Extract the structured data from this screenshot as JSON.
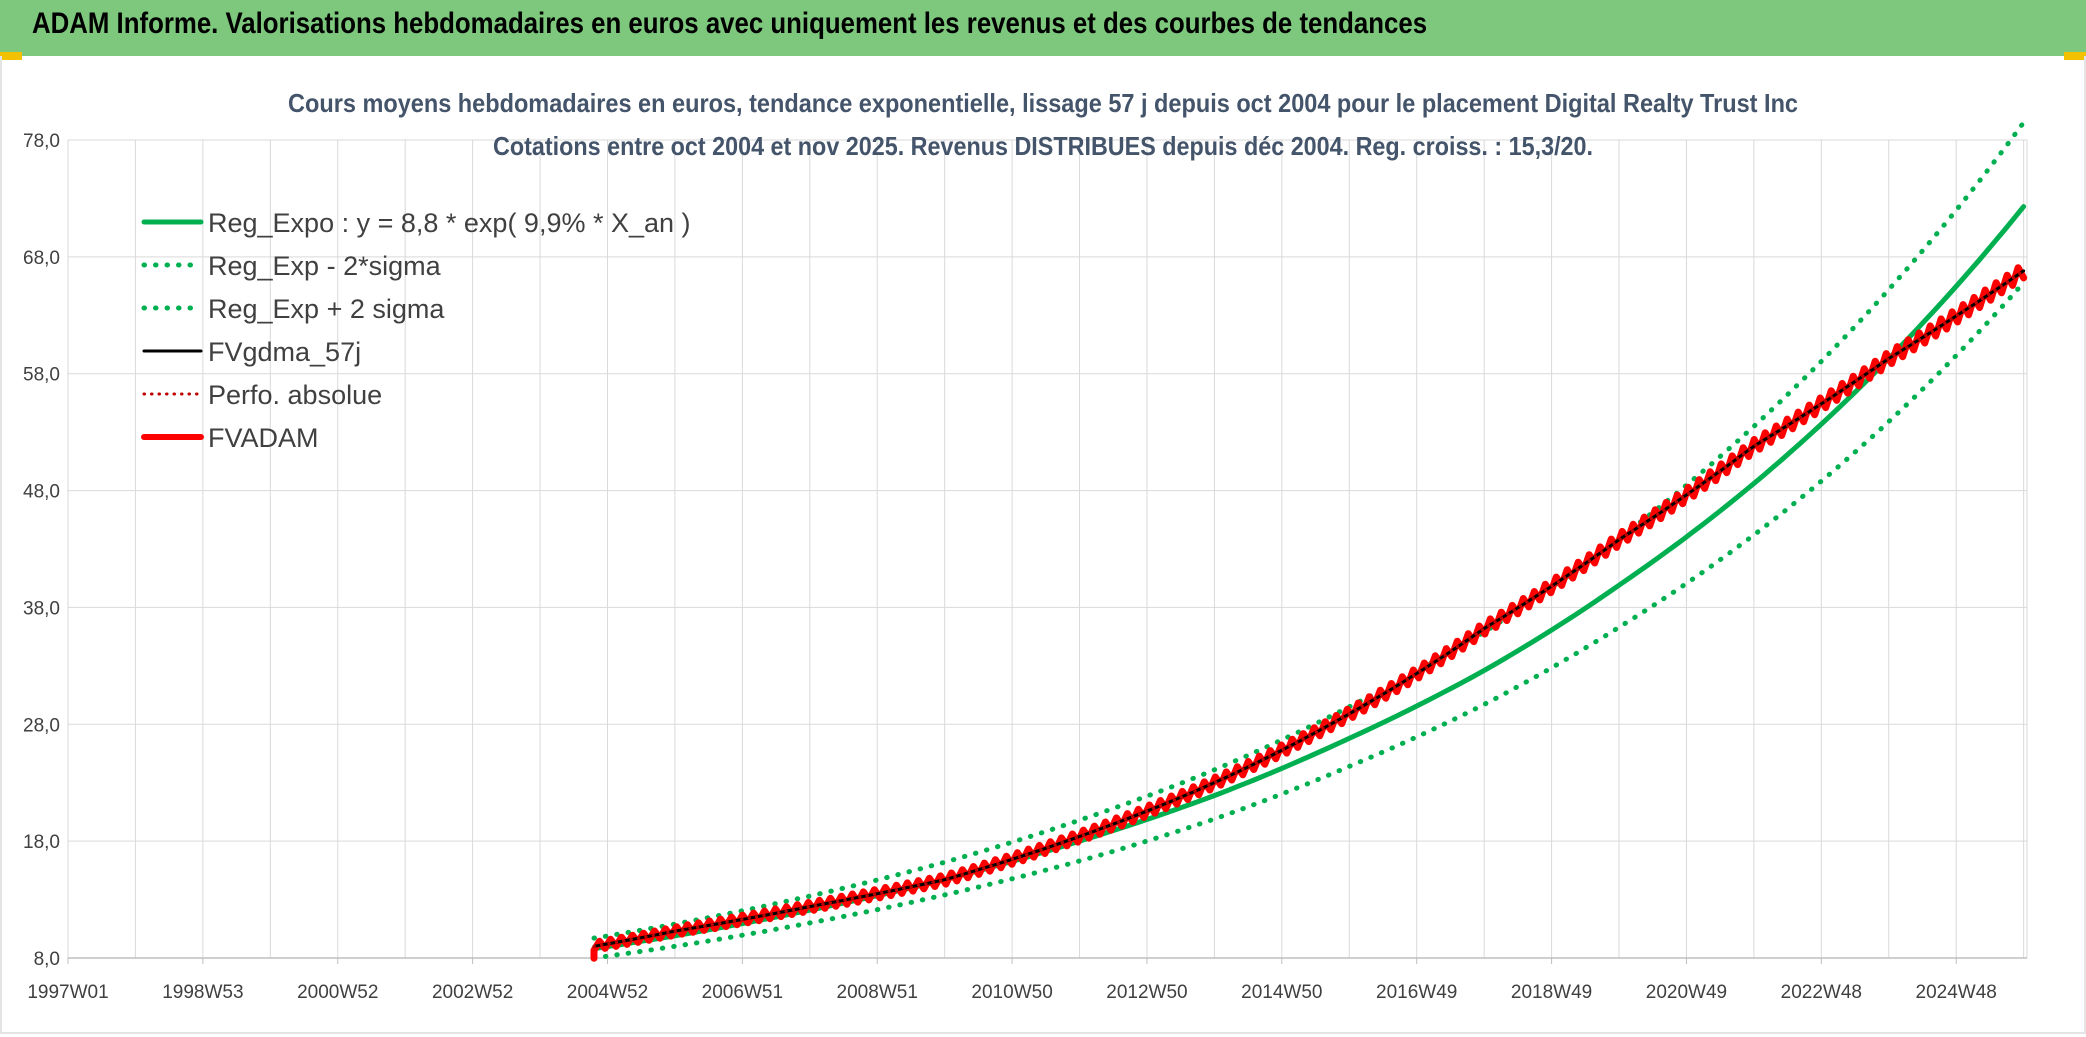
{
  "header": {
    "title": "ADAM Informe. Valorisations hebdomadaires en euros avec uniquement les revenus et des courbes de tendances"
  },
  "colors": {
    "header_bg": "#7dc87d",
    "reg_green": "#00b050",
    "fvadam_red": "#ff0000",
    "perfo_red": "#c00000",
    "fvgdma_black": "#000000",
    "grid": "#d9d9d9"
  },
  "chart_data": {
    "type": "line",
    "title": "Cours moyens hebdomadaires en euros, tendance exponentielle, lissage 57 j depuis oct 2004 pour le placement Digital Realty Trust Inc",
    "subtitle": "Cotations entre oct 2004 et nov 2025. Revenus DISTRIBUES depuis déc 2004. Reg. croiss. : 15,3/20.",
    "x_ticks": [
      "1997W01",
      "1998W53",
      "2000W52",
      "2002W52",
      "2004W52",
      "2006W51",
      "2008W51",
      "2010W50",
      "2012W50",
      "2014W50",
      "2016W49",
      "2018W49",
      "2020W49",
      "2022W48",
      "2024W48"
    ],
    "x_tick_years": [
      1997.0,
      1999.0,
      2001.0,
      2003.0,
      2005.0,
      2007.0,
      2009.0,
      2011.0,
      2013.0,
      2015.0,
      2017.0,
      2019.0,
      2021.0,
      2023.0,
      2025.0
    ],
    "x_range": [
      1997.0,
      2026.05
    ],
    "y_ticks": [
      "8,0",
      "18,0",
      "28,0",
      "38,0",
      "48,0",
      "58,0",
      "68,0",
      "78,0"
    ],
    "ylim": [
      8,
      78
    ],
    "grid": true,
    "legend_position": "top-left",
    "series": [
      {
        "name": "Reg_Expo : y = 8,8 * exp( 9,9% *  X_an )",
        "color": "#00b050",
        "style": "solid-thick",
        "x": [
          2004.8,
          2006,
          2008,
          2010,
          2012,
          2014,
          2016,
          2018,
          2020,
          2022,
          2024,
          2026
        ],
        "values": [
          8.8,
          9.9,
          12.1,
          14.7,
          18.0,
          21.9,
          26.8,
          32.6,
          39.9,
          48.6,
          59.3,
          72.3
        ]
      },
      {
        "name": "Reg_Exp - 2*sigma",
        "color": "#00b050",
        "style": "dotted",
        "x": [
          2004.8,
          2006,
          2008,
          2010,
          2012,
          2014,
          2016,
          2018,
          2020,
          2022,
          2024,
          2026
        ],
        "values": [
          8.0,
          9.0,
          11.0,
          13.4,
          16.3,
          19.9,
          24.4,
          29.7,
          36.3,
          44.2,
          53.9,
          65.8
        ]
      },
      {
        "name": "Reg_Exp + 2 sigma",
        "color": "#00b050",
        "style": "dotted",
        "x": [
          2004.8,
          2006,
          2008,
          2010,
          2012,
          2014,
          2016,
          2018,
          2020,
          2022,
          2024,
          2026
        ],
        "values": [
          9.7,
          10.9,
          13.3,
          16.2,
          19.8,
          24.1,
          29.5,
          35.9,
          43.9,
          53.5,
          65.2,
          79.5
        ]
      },
      {
        "name": "FVgdma_57j",
        "color": "#000000",
        "style": "solid",
        "x": [
          2004.8,
          2006,
          2008,
          2010,
          2012,
          2014,
          2016,
          2018,
          2020,
          2022,
          2024,
          2026
        ],
        "values": [
          9.0,
          10.3,
          12.4,
          14.7,
          18.4,
          23.0,
          28.9,
          36.2,
          43.8,
          51.8,
          59.3,
          66.8
        ]
      },
      {
        "name": "Perfo. absolue",
        "color": "#c00000",
        "style": "dotted-thin",
        "x": [
          2004.8,
          2006,
          2008,
          2010,
          2012,
          2014,
          2016,
          2018,
          2020,
          2022,
          2024,
          2026
        ],
        "values": [
          9.0,
          10.3,
          12.4,
          14.7,
          18.4,
          23.0,
          28.9,
          36.2,
          43.8,
          51.8,
          59.3,
          66.8
        ]
      },
      {
        "name": "FVADAM",
        "color": "#ff0000",
        "style": "solid-thick-stepped",
        "x": [
          2004.8,
          2006,
          2008,
          2010,
          2012,
          2014,
          2016,
          2018,
          2020,
          2022,
          2024,
          2026
        ],
        "values": [
          9.0,
          10.3,
          12.4,
          14.7,
          18.4,
          23.0,
          28.9,
          36.2,
          43.8,
          51.8,
          59.3,
          66.8
        ]
      }
    ]
  }
}
